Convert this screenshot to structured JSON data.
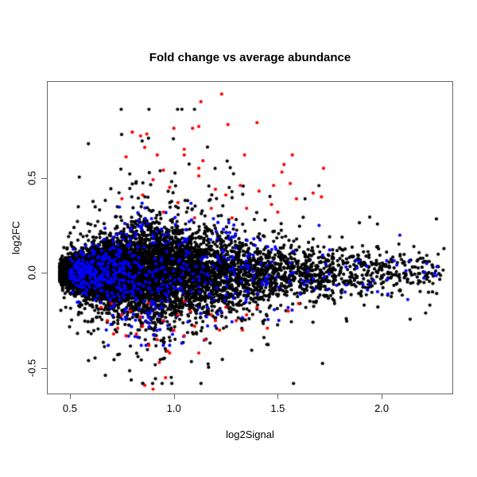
{
  "chart_data": {
    "type": "scatter",
    "title": "Fold change vs average abundance",
    "xlabel": "log2Signal",
    "ylabel": "log2FC",
    "xlim": [
      0.393,
      2.34
    ],
    "ylim": [
      -0.633,
      1.004
    ],
    "x_ticks": [
      0.5,
      1.0,
      1.5,
      2.0
    ],
    "y_ticks": [
      -0.5,
      0.0,
      0.5
    ],
    "tick_decimals": 1,
    "grid": false,
    "legend_position": "none",
    "point_style": {
      "shape": "filled-circle",
      "radius_px": 2.1
    },
    "colors": {
      "background": "#ffffff",
      "box_line": "#676767",
      "text": "#000000",
      "non_significant": "#000000",
      "moderate": "#0000ff",
      "significant": "#ff0000"
    },
    "seed": 1234567,
    "series": [
      {
        "name": "non-significant-genes",
        "color": "#000000",
        "n": 9500,
        "x_distribution": {
          "kind": "truncated-exponential",
          "min": 0.45,
          "max": 2.3,
          "lambda": 2.4
        },
        "y_distribution": {
          "kind": "normal-funnel",
          "sd_base": 0.02,
          "sd_amp": 0.115,
          "sd_mult": 1.0,
          "ramp_start": 0.45,
          "ramp_width": 0.45,
          "peak_x": 0.95,
          "decay": 0.95,
          "tail_prob": 0.055,
          "tail_mult": 2.3,
          "far_tail_prob": 0.012,
          "far_tail_mult": 3.6,
          "pos_skew": 1.18,
          "y_clamp": [
            -0.58,
            0.86
          ]
        }
      },
      {
        "name": "moderately-significant-genes",
        "color": "#0000ff",
        "n": 620,
        "x_distribution": {
          "kind": "truncated-exponential",
          "min": 0.5,
          "max": 2.28,
          "lambda": 2.0
        },
        "y_distribution": {
          "kind": "normal-funnel",
          "sd_base": 0.025,
          "sd_amp": 0.115,
          "sd_mult": 1.35,
          "ramp_start": 0.45,
          "ramp_width": 0.45,
          "peak_x": 0.95,
          "decay": 0.95,
          "tail_prob": 0.05,
          "tail_mult": 1.8,
          "far_tail_prob": 0.0,
          "far_tail_mult": 1.0,
          "pos_skew": 1.0,
          "y_clamp": [
            -0.38,
            0.38
          ]
        }
      },
      {
        "name": "significant-genes",
        "color": "#ff0000",
        "points": [
          [
            1.23,
            0.94
          ],
          [
            1.13,
            0.9
          ],
          [
            0.8,
            0.74
          ],
          [
            0.84,
            0.72
          ],
          [
            0.87,
            0.73
          ],
          [
            0.86,
            0.66
          ],
          [
            1.0,
            0.76
          ],
          [
            1.09,
            0.76
          ],
          [
            1.12,
            0.77
          ],
          [
            1.26,
            0.78
          ],
          [
            1.4,
            0.79
          ],
          [
            0.77,
            0.61
          ],
          [
            0.92,
            0.62
          ],
          [
            1.05,
            0.65
          ],
          [
            1.05,
            0.62
          ],
          [
            1.14,
            0.59
          ],
          [
            1.12,
            0.55
          ],
          [
            1.12,
            0.51
          ],
          [
            1.34,
            0.62
          ],
          [
            1.57,
            0.62
          ],
          [
            1.53,
            0.57
          ],
          [
            1.52,
            0.53
          ],
          [
            1.72,
            0.55
          ],
          [
            1.48,
            0.46
          ],
          [
            1.41,
            0.43
          ],
          [
            1.56,
            0.47
          ],
          [
            1.32,
            0.46
          ],
          [
            1.67,
            0.42
          ],
          [
            1.71,
            0.4
          ],
          [
            1.59,
            0.39
          ],
          [
            1.47,
            0.36
          ],
          [
            0.95,
            0.54
          ],
          [
            0.9,
            0.49
          ],
          [
            0.98,
            0.45
          ],
          [
            1.2,
            0.44
          ],
          [
            1.25,
            0.41
          ],
          [
            0.85,
            0.41
          ],
          [
            0.75,
            0.39
          ],
          [
            1.02,
            0.37
          ],
          [
            1.18,
            0.34
          ],
          [
            1.35,
            0.34
          ],
          [
            0.95,
            0.32
          ],
          [
            1.5,
            0.32
          ],
          [
            1.1,
            0.29
          ],
          [
            1.28,
            0.29
          ],
          [
            0.65,
            -0.18
          ],
          [
            0.79,
            -0.2
          ],
          [
            0.84,
            -0.23
          ],
          [
            0.73,
            -0.29
          ],
          [
            0.71,
            -0.32
          ],
          [
            0.82,
            -0.32
          ],
          [
            0.77,
            -0.33
          ],
          [
            0.86,
            -0.59
          ],
          [
            0.9,
            -0.61
          ],
          [
            0.96,
            -0.55
          ],
          [
            1.45,
            -0.29
          ],
          [
            0.68,
            -0.25
          ],
          [
            0.92,
            -0.35
          ],
          [
            0.88,
            -0.38
          ],
          [
            1.0,
            -0.3
          ],
          [
            1.05,
            -0.33
          ],
          [
            1.1,
            -0.28
          ],
          [
            1.15,
            -0.35
          ],
          [
            1.22,
            -0.3
          ],
          [
            1.3,
            -0.25
          ],
          [
            1.35,
            -0.22
          ],
          [
            1.18,
            -0.22
          ],
          [
            0.95,
            -0.25
          ],
          [
            1.02,
            -0.22
          ],
          [
            1.08,
            -0.2
          ],
          [
            0.85,
            -0.28
          ],
          [
            0.75,
            -0.22
          ],
          [
            1.4,
            -0.18
          ],
          [
            1.25,
            -0.18
          ],
          [
            1.12,
            -0.42
          ],
          [
            0.98,
            -0.42
          ],
          [
            0.93,
            -0.47
          ],
          [
            1.2,
            -0.25
          ],
          [
            1.55,
            -0.2
          ],
          [
            1.6,
            -0.16
          ],
          [
            0.7,
            -0.16
          ],
          [
            0.88,
            -0.16
          ],
          [
            1.05,
            -0.15
          ],
          [
            1.33,
            -0.3
          ],
          [
            0.97,
            -0.41
          ]
        ]
      }
    ]
  }
}
